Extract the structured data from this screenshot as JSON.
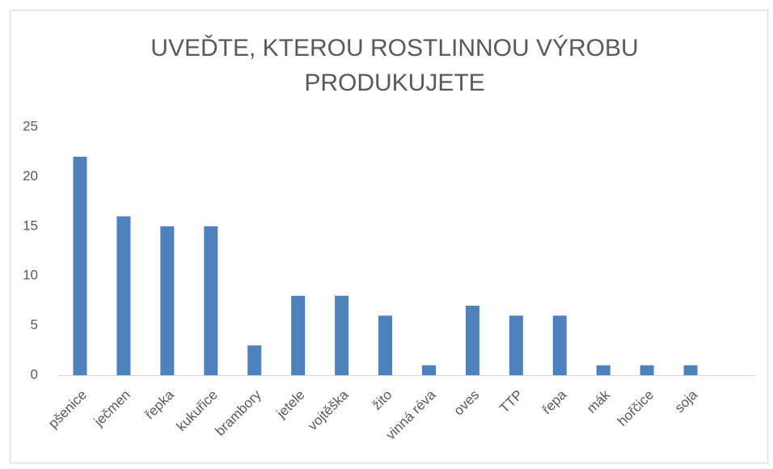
{
  "chart_data": {
    "type": "bar",
    "title": "UVEĎTE, KTEROU ROSTLINNOU VÝROBU PRODUKUJETE",
    "categories": [
      "pšenice",
      "ječmen",
      "řepka",
      "kukuřice",
      "brambory",
      "jetele",
      "vojtěška",
      "žito",
      "vinná réva",
      "oves",
      "TTP",
      "řepa",
      "mák",
      "hořčice",
      "soja",
      null
    ],
    "values": [
      22,
      16,
      15,
      15,
      3,
      8,
      8,
      6,
      1,
      7,
      6,
      6,
      1,
      1,
      1,
      null
    ],
    "color": "#4f81bd",
    "ylim": [
      0,
      25
    ],
    "yticks": [
      0,
      5,
      10,
      15,
      20,
      25
    ],
    "grid": false
  }
}
